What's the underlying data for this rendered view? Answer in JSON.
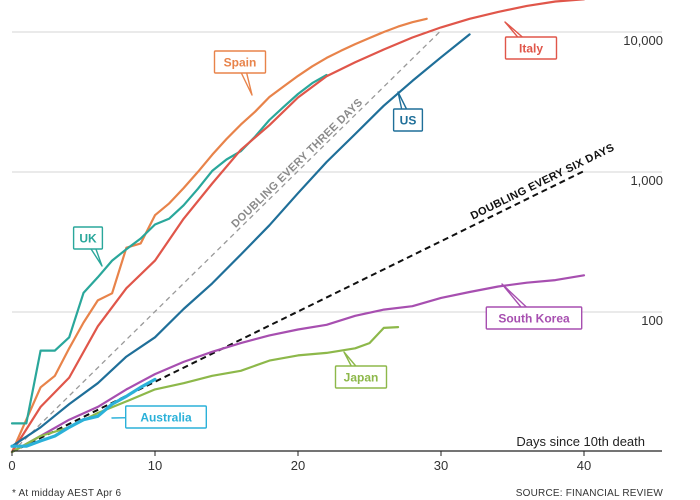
{
  "chart_data": {
    "type": "line",
    "title": "",
    "xlabel": "Days since 10th death",
    "ylabel": "",
    "xlim": [
      0,
      45
    ],
    "ylim": [
      8,
      25000
    ],
    "y_scale": "log",
    "x_ticks": [
      "0",
      "10",
      "20",
      "30",
      "40"
    ],
    "y_ticks": [
      "100",
      "1,000",
      "10,000"
    ],
    "y_tick_values": [
      100,
      1000,
      10000
    ],
    "grid": "horizontal",
    "series": [
      {
        "name": "Spain",
        "color": "#e8834a",
        "x": [
          0,
          1,
          2,
          3,
          4,
          5,
          6,
          7,
          8,
          9,
          10,
          11,
          12,
          13,
          14,
          15,
          16,
          17,
          18,
          19,
          20,
          21,
          22,
          23,
          24,
          25,
          26,
          27,
          28,
          29
        ],
        "y": [
          10,
          17,
          29,
          35,
          55,
          84,
          121,
          136,
          288,
          309,
          491,
          598,
          767,
          1002,
          1326,
          1720,
          2182,
          2696,
          3434,
          4089,
          4858,
          5690,
          6528,
          7340,
          8189,
          9053,
          10003,
          10935,
          11744,
          12418
        ]
      },
      {
        "name": "UK",
        "color": "#2aa79b",
        "x": [
          0,
          1,
          2,
          3,
          4,
          5,
          6,
          7,
          8,
          9,
          10,
          11,
          12,
          13,
          14,
          15,
          16,
          17,
          18,
          19,
          20,
          21,
          22
        ],
        "y": [
          16,
          16,
          53,
          53,
          66,
          137,
          177,
          233,
          281,
          335,
          422,
          465,
          578,
          759,
          1019,
          1228,
          1408,
          1789,
          2352,
          2921,
          3605,
          4313,
          4934
        ]
      },
      {
        "name": "Italy",
        "color": "#e0564a",
        "x": [
          0,
          2,
          4,
          6,
          8,
          10,
          12,
          14,
          16,
          18,
          20,
          22,
          24,
          26,
          28,
          30,
          32,
          34,
          36,
          38,
          40
        ],
        "y": [
          10,
          21,
          34,
          79,
          148,
          233,
          463,
          827,
          1441,
          2158,
          3405,
          4825,
          6077,
          7503,
          9134,
          10779,
          12428,
          13915,
          15362,
          16523,
          17127
        ]
      },
      {
        "name": "US",
        "color": "#1f6f99",
        "x": [
          0,
          2,
          4,
          6,
          8,
          10,
          12,
          14,
          16,
          18,
          20,
          22,
          24,
          26,
          28,
          30,
          32
        ],
        "y": [
          11,
          15,
          22,
          31,
          48,
          66,
          105,
          160,
          257,
          416,
          706,
          1178,
          1868,
          2978,
          4475,
          6598,
          9620
        ]
      },
      {
        "name": "South Korea",
        "color": "#a74fb0",
        "x": [
          0,
          2,
          4,
          6,
          8,
          10,
          12,
          14,
          16,
          18,
          20,
          22,
          24,
          26,
          28,
          30,
          32,
          34,
          36,
          38,
          40
        ],
        "y": [
          10,
          13,
          17,
          21,
          28,
          36,
          44,
          52,
          60,
          68,
          75,
          81,
          94,
          104,
          110,
          126,
          139,
          152,
          162,
          169,
          183
        ]
      },
      {
        "name": "Japan",
        "color": "#8db84a",
        "x": [
          0,
          2,
          4,
          6,
          8,
          10,
          12,
          14,
          16,
          18,
          20,
          22,
          24,
          25,
          26,
          27
        ],
        "y": [
          10,
          13,
          15,
          19,
          23,
          28,
          31,
          35,
          38,
          45,
          49,
          51,
          55,
          60,
          77,
          78
        ]
      },
      {
        "name": "Australia",
        "color": "#2bb1d9",
        "x": [
          0,
          1,
          2,
          3,
          4,
          5,
          6,
          7,
          8,
          9,
          10
        ],
        "y": [
          11,
          11,
          12,
          13,
          15,
          17,
          18,
          22,
          25,
          29,
          33
        ]
      }
    ],
    "guides": [
      {
        "label": "DOUBLING EVERY THREE DAYS",
        "doubling_days": 3,
        "x": [
          0,
          30
        ],
        "y": [
          10,
          10240
        ],
        "color": "#999999"
      },
      {
        "label": "DOUBLING EVERY SIX DAYS",
        "doubling_days": 6,
        "x": [
          0,
          40
        ],
        "y": [
          10,
          1016
        ],
        "color": "#111111"
      }
    ]
  },
  "footnote": "* At midday AEST Apr 6",
  "source": "SOURCE: FINANCIAL REVIEW"
}
